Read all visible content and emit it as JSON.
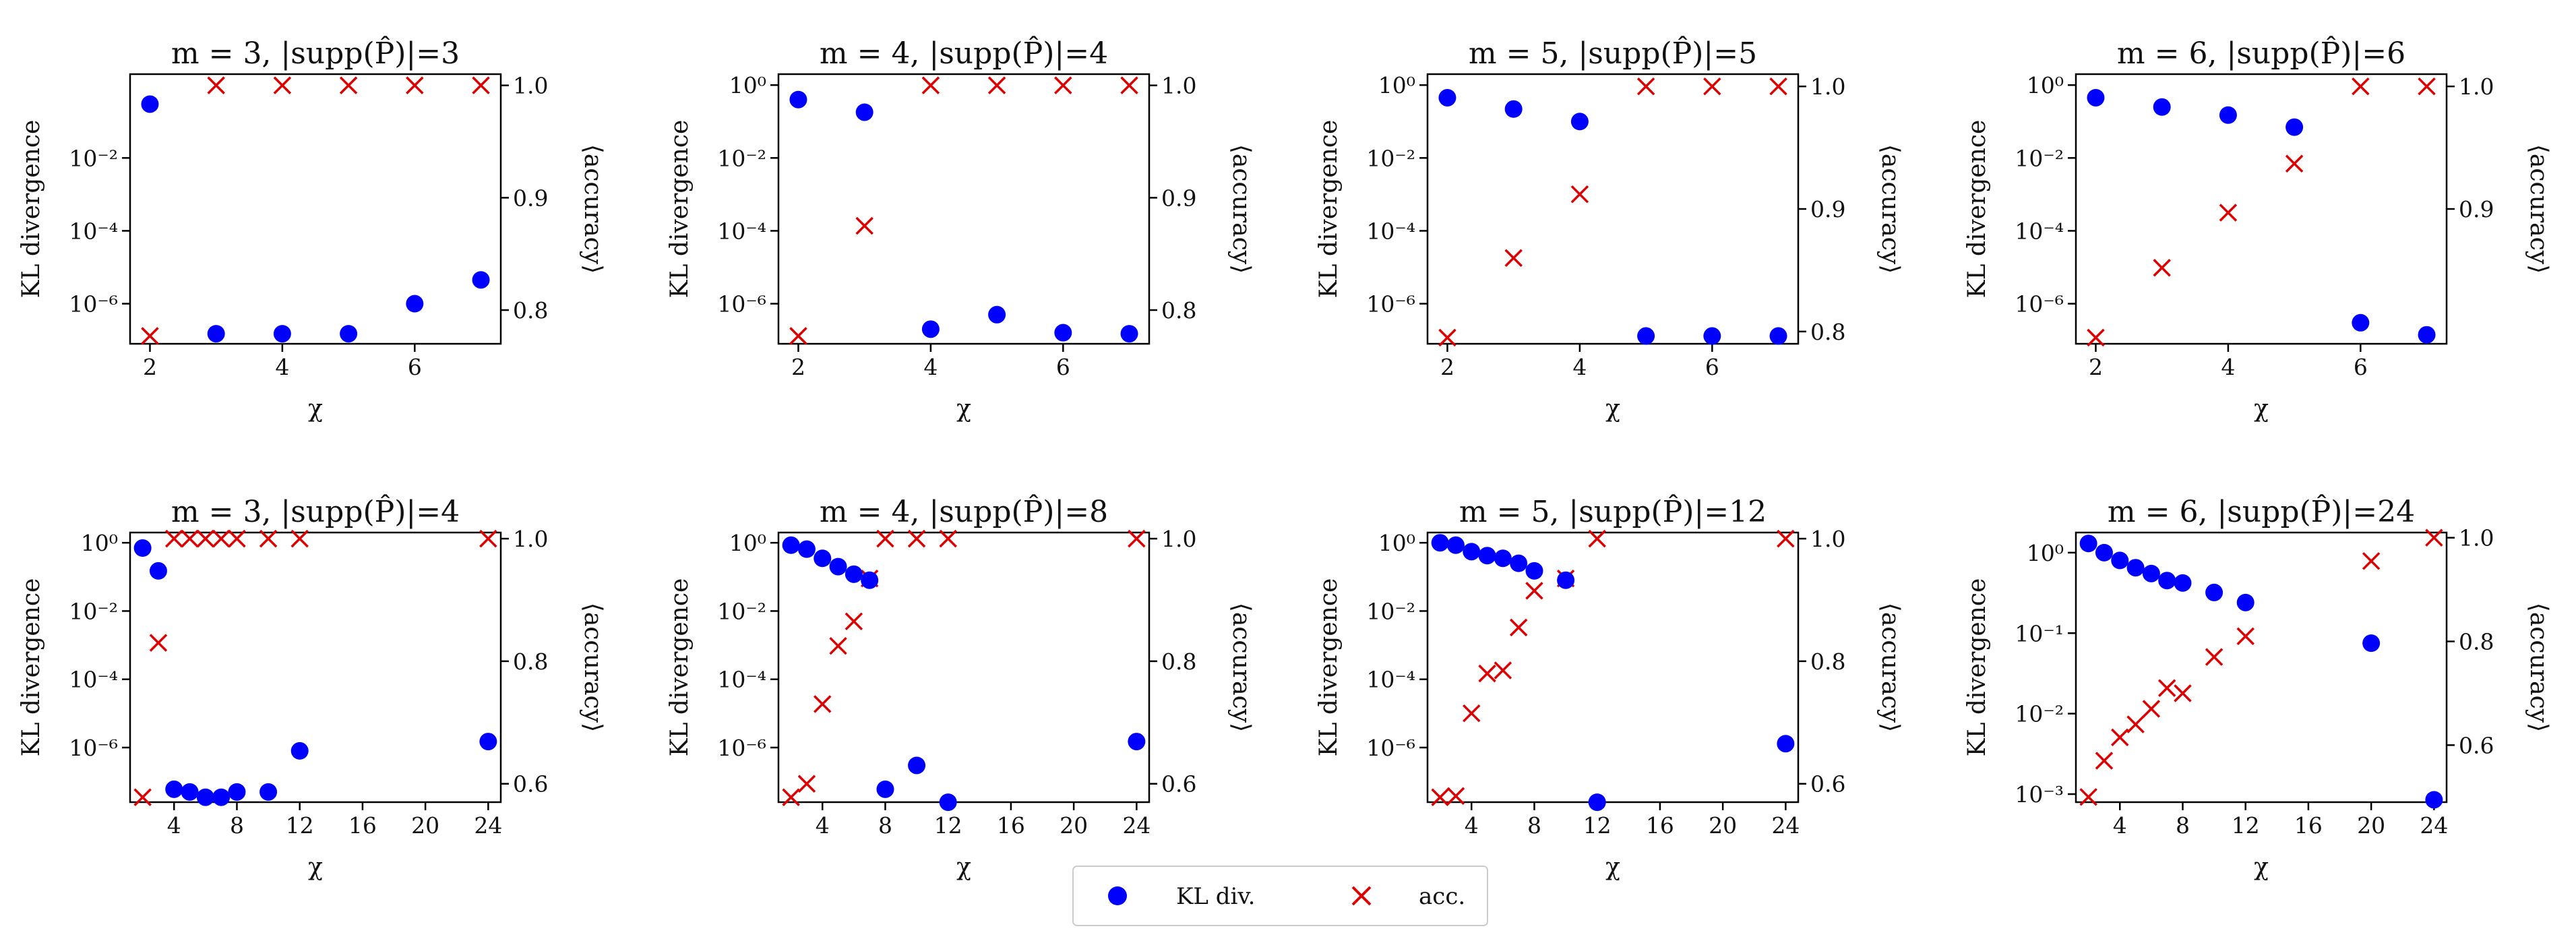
{
  "colors": {
    "kl": "#0000ff",
    "acc": "#dd0000"
  },
  "legend": {
    "kl_label": "KL div.",
    "acc_label": "acc."
  },
  "chart_data": [
    {
      "type": "scatter",
      "title": "m = 3, |supp(P̂)|=3",
      "xlabel": "χ",
      "ylabel": "KL divergence",
      "y2label": "⟨accuracy⟩",
      "xticks": [
        2,
        4,
        6
      ],
      "xlim": [
        1.7,
        7.3
      ],
      "yscale": "log",
      "ylim_exp": [
        -7.1,
        0.3
      ],
      "ytick_exps": [
        -6,
        -4,
        -2
      ],
      "ytick_labels": [
        "10⁻⁶",
        "10⁻⁴",
        "10⁻²"
      ],
      "y2lim": [
        0.77,
        1.01
      ],
      "y2ticks": [
        0.8,
        0.9,
        1.0
      ],
      "y2tick_labels": [
        "0.8",
        "0.9",
        "1.0"
      ],
      "kl": [
        [
          2,
          0.3
        ],
        [
          3,
          1.5e-07
        ],
        [
          4,
          1.5e-07
        ],
        [
          5,
          1.5e-07
        ],
        [
          6,
          1e-06
        ],
        [
          7,
          4.5e-06
        ]
      ],
      "acc": [
        [
          2,
          0.777
        ],
        [
          3,
          1.0
        ],
        [
          4,
          1.0
        ],
        [
          5,
          1.0
        ],
        [
          6,
          1.0
        ],
        [
          7,
          1.0
        ]
      ]
    },
    {
      "type": "scatter",
      "title": "m = 4, |supp(P̂)|=4",
      "xlabel": "χ",
      "ylabel": "KL divergence",
      "y2label": "⟨accuracy⟩",
      "xticks": [
        2,
        4,
        6
      ],
      "xlim": [
        1.7,
        7.3
      ],
      "yscale": "log",
      "ylim_exp": [
        -7.1,
        0.3
      ],
      "ytick_exps": [
        0,
        -2,
        -4,
        -6
      ],
      "ytick_labels": [
        "10⁰",
        "10⁻²",
        "10⁻⁴",
        "10⁻⁶"
      ],
      "y2lim": [
        0.77,
        1.01
      ],
      "y2ticks": [
        0.8,
        0.9,
        1.0
      ],
      "y2tick_labels": [
        "0.8",
        "0.9",
        "1.0"
      ],
      "kl": [
        [
          2,
          0.4
        ],
        [
          3,
          0.18
        ],
        [
          4,
          2e-07
        ],
        [
          5,
          5e-07
        ],
        [
          6,
          1.6e-07
        ],
        [
          7,
          1.5e-07
        ]
      ],
      "acc": [
        [
          2,
          0.777
        ],
        [
          3,
          0.875
        ],
        [
          4,
          1.0
        ],
        [
          5,
          1.0
        ],
        [
          6,
          1.0
        ],
        [
          7,
          1.0
        ]
      ]
    },
    {
      "type": "scatter",
      "title": "m = 5, |supp(P̂)|=5",
      "xlabel": "χ",
      "ylabel": "KL divergence",
      "y2label": "⟨accuracy⟩",
      "xticks": [
        2,
        4,
        6
      ],
      "xlim": [
        1.7,
        7.3
      ],
      "yscale": "log",
      "ylim_exp": [
        -7.1,
        0.3
      ],
      "ytick_exps": [
        0,
        -2,
        -4,
        -6
      ],
      "ytick_labels": [
        "10⁰",
        "10⁻²",
        "10⁻⁴",
        "10⁻⁶"
      ],
      "y2lim": [
        0.79,
        1.01
      ],
      "y2ticks": [
        0.8,
        0.9,
        1.0
      ],
      "y2tick_labels": [
        "0.8",
        "0.9",
        "1.0"
      ],
      "kl": [
        [
          2,
          0.45
        ],
        [
          3,
          0.22
        ],
        [
          4,
          0.1
        ],
        [
          5,
          1.3e-07
        ],
        [
          6,
          1.3e-07
        ],
        [
          7,
          1.3e-07
        ]
      ],
      "acc": [
        [
          2,
          0.795
        ],
        [
          3,
          0.86
        ],
        [
          4,
          0.912
        ],
        [
          5,
          1.0
        ],
        [
          6,
          1.0
        ],
        [
          7,
          1.0
        ]
      ]
    },
    {
      "type": "scatter",
      "title": "m = 6, |supp(P̂)|=6",
      "xlabel": "χ",
      "ylabel": "KL divergence",
      "y2label": "⟨accuracy⟩",
      "xticks": [
        2,
        4,
        6
      ],
      "xlim": [
        1.7,
        7.3
      ],
      "yscale": "log",
      "ylim_exp": [
        -7.1,
        0.3
      ],
      "ytick_exps": [
        0,
        -2,
        -4,
        -6
      ],
      "ytick_labels": [
        "10⁰",
        "10⁻²",
        "10⁻⁴",
        "10⁻⁶"
      ],
      "y2lim": [
        0.79,
        1.01
      ],
      "y2ticks": [
        0.9,
        1.0
      ],
      "y2tick_labels": [
        "0.9",
        "1.0"
      ],
      "kl": [
        [
          2,
          0.45
        ],
        [
          3,
          0.25
        ],
        [
          4,
          0.15
        ],
        [
          5,
          0.07
        ],
        [
          6,
          3e-07
        ],
        [
          7,
          1.4e-07
        ]
      ],
      "acc": [
        [
          2,
          0.795
        ],
        [
          3,
          0.852
        ],
        [
          4,
          0.897
        ],
        [
          5,
          0.937
        ],
        [
          6,
          1.0
        ],
        [
          7,
          1.0
        ]
      ]
    },
    {
      "type": "scatter",
      "title": "m = 3, |supp(P̂)|=4",
      "xlabel": "χ",
      "ylabel": "KL divergence",
      "y2label": "⟨accuracy⟩",
      "xticks": [
        4,
        8,
        12,
        16,
        20,
        24
      ],
      "xlim": [
        1.2,
        24.8
      ],
      "yscale": "log",
      "ylim_exp": [
        -7.6,
        0.3
      ],
      "ytick_exps": [
        0,
        -2,
        -4,
        -6
      ],
      "ytick_labels": [
        "10⁰",
        "10⁻²",
        "10⁻⁴",
        "10⁻⁶"
      ],
      "y2lim": [
        0.57,
        1.01
      ],
      "y2ticks": [
        0.6,
        0.8,
        1.0
      ],
      "y2tick_labels": [
        "0.6",
        "0.8",
        "1.0"
      ],
      "kl": [
        [
          2,
          0.7
        ],
        [
          3,
          0.15
        ],
        [
          4,
          6e-08
        ],
        [
          5,
          5e-08
        ],
        [
          6,
          3.5e-08
        ],
        [
          7,
          3.5e-08
        ],
        [
          8,
          5e-08
        ],
        [
          10,
          5e-08
        ],
        [
          12,
          8e-07
        ],
        [
          24,
          1.5e-06
        ]
      ],
      "acc": [
        [
          2,
          0.578
        ],
        [
          3,
          0.83
        ],
        [
          4,
          1.0
        ],
        [
          5,
          1.0
        ],
        [
          6,
          1.0
        ],
        [
          7,
          1.0
        ],
        [
          8,
          1.0
        ],
        [
          10,
          1.0
        ],
        [
          12,
          1.0
        ],
        [
          24,
          1.0
        ]
      ]
    },
    {
      "type": "scatter",
      "title": "m = 4, |supp(P̂)|=8",
      "xlabel": "χ",
      "ylabel": "KL divergence",
      "y2label": "⟨accuracy⟩",
      "xticks": [
        4,
        8,
        12,
        16,
        20,
        24
      ],
      "xlim": [
        1.2,
        24.8
      ],
      "yscale": "log",
      "ylim_exp": [
        -7.6,
        0.3
      ],
      "ytick_exps": [
        0,
        -2,
        -4,
        -6
      ],
      "ytick_labels": [
        "10⁰",
        "10⁻²",
        "10⁻⁴",
        "10⁻⁶"
      ],
      "y2lim": [
        0.57,
        1.01
      ],
      "y2ticks": [
        0.6,
        0.8,
        1.0
      ],
      "y2tick_labels": [
        "0.6",
        "0.8",
        "1.0"
      ],
      "kl": [
        [
          2,
          0.85
        ],
        [
          3,
          0.65
        ],
        [
          4,
          0.35
        ],
        [
          5,
          0.2
        ],
        [
          6,
          0.12
        ],
        [
          7,
          0.08
        ],
        [
          8,
          6e-08
        ],
        [
          10,
          3e-07
        ],
        [
          12,
          2.5e-08
        ],
        [
          24,
          1.5e-06
        ]
      ],
      "acc": [
        [
          2,
          0.578
        ],
        [
          3,
          0.6
        ],
        [
          4,
          0.73
        ],
        [
          5,
          0.825
        ],
        [
          6,
          0.865
        ],
        [
          7,
          0.935
        ],
        [
          8,
          1.0
        ],
        [
          10,
          1.0
        ],
        [
          12,
          1.0
        ],
        [
          24,
          1.0
        ]
      ]
    },
    {
      "type": "scatter",
      "title": "m = 5, |supp(P̂)|=12",
      "xlabel": "χ",
      "ylabel": "KL divergence",
      "y2label": "⟨accuracy⟩",
      "xticks": [
        4,
        8,
        12,
        16,
        20,
        24
      ],
      "xlim": [
        1.2,
        24.8
      ],
      "yscale": "log",
      "ylim_exp": [
        -7.6,
        0.3
      ],
      "ytick_exps": [
        0,
        -2,
        -4,
        -6
      ],
      "ytick_labels": [
        "10⁰",
        "10⁻²",
        "10⁻⁴",
        "10⁻⁶"
      ],
      "y2lim": [
        0.57,
        1.01
      ],
      "y2ticks": [
        0.6,
        0.8,
        1.0
      ],
      "y2tick_labels": [
        "0.6",
        "0.8",
        "1.0"
      ],
      "kl": [
        [
          2,
          1.0
        ],
        [
          3,
          0.85
        ],
        [
          4,
          0.55
        ],
        [
          5,
          0.42
        ],
        [
          6,
          0.35
        ],
        [
          7,
          0.25
        ],
        [
          8,
          0.15
        ],
        [
          10,
          0.08
        ],
        [
          12,
          2.5e-08
        ],
        [
          24,
          1.3e-06
        ]
      ],
      "acc": [
        [
          2,
          0.578
        ],
        [
          3,
          0.58
        ],
        [
          4,
          0.715
        ],
        [
          5,
          0.78
        ],
        [
          6,
          0.785
        ],
        [
          7,
          0.855
        ],
        [
          8,
          0.915
        ],
        [
          10,
          0.935
        ],
        [
          12,
          1.0
        ],
        [
          24,
          1.0
        ]
      ]
    },
    {
      "type": "scatter",
      "title": "m = 6, |supp(P̂)|=24",
      "xlabel": "χ",
      "ylabel": "KL divergence",
      "y2label": "⟨accuracy⟩",
      "xticks": [
        4,
        8,
        12,
        16,
        20,
        24
      ],
      "xlim": [
        1.2,
        24.8
      ],
      "yscale": "log",
      "ylim_exp": [
        -3.1,
        0.25
      ],
      "ytick_exps": [
        0,
        -1,
        -2,
        -3
      ],
      "ytick_labels": [
        "10⁰",
        "10⁻¹",
        "10⁻²",
        "10⁻³"
      ],
      "y2lim": [
        0.49,
        1.01
      ],
      "y2ticks": [
        0.6,
        0.8,
        1.0
      ],
      "y2tick_labels": [
        "0.6",
        "0.8",
        "1.0"
      ],
      "kl": [
        [
          2,
          1.3
        ],
        [
          3,
          1.0
        ],
        [
          4,
          0.8
        ],
        [
          5,
          0.65
        ],
        [
          6,
          0.55
        ],
        [
          7,
          0.45
        ],
        [
          8,
          0.42
        ],
        [
          10,
          0.32
        ],
        [
          12,
          0.24
        ],
        [
          20,
          0.075
        ],
        [
          24,
          0.00085
        ]
      ],
      "acc": [
        [
          2,
          0.5
        ],
        [
          3,
          0.57
        ],
        [
          4,
          0.615
        ],
        [
          5,
          0.64
        ],
        [
          6,
          0.67
        ],
        [
          7,
          0.71
        ],
        [
          8,
          0.7
        ],
        [
          10,
          0.77
        ],
        [
          12,
          0.81
        ],
        [
          20,
          0.955
        ],
        [
          24,
          1.0
        ]
      ]
    }
  ]
}
